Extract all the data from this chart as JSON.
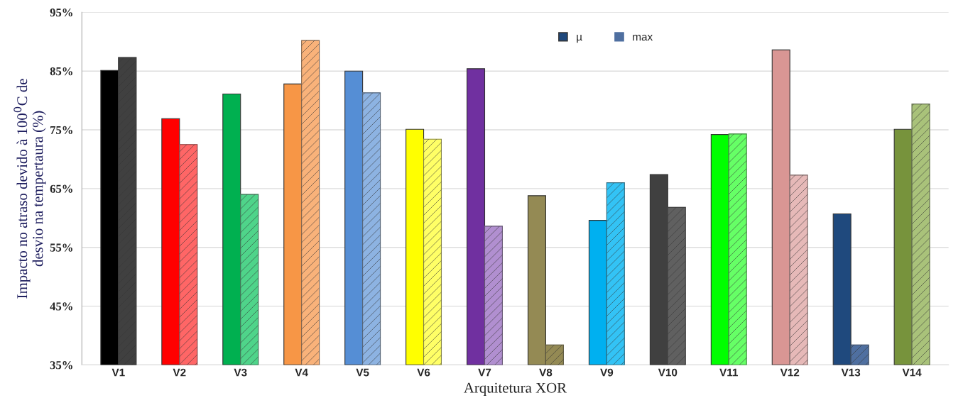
{
  "chart_data": {
    "type": "bar",
    "xlabel": "Arquitetura XOR",
    "ylabel": "Impacto no atraso devido à 100$^{0}$C de\ndesvio na tempertaura (%)",
    "categories": [
      "V1",
      "V2",
      "V3",
      "V4",
      "V5",
      "V6",
      "V7",
      "V8",
      "V9",
      "V10",
      "V11",
      "V12",
      "V13",
      "V14"
    ],
    "series": [
      {
        "name": "µ",
        "color": "#1f497d",
        "colors": [
          "#000000",
          "#ff0000",
          "#00b050",
          "#f79646",
          "#558ed5",
          "#ffff00",
          "#7030a0",
          "#948a54",
          "#00b0f0",
          "#404040",
          "#00ff00",
          "#d99694",
          "#1f497d",
          "#77933c"
        ],
        "values": [
          85.1,
          76.9,
          81.1,
          82.8,
          85.0,
          75.1,
          85.4,
          63.8,
          59.6,
          67.4,
          74.2,
          88.6,
          60.7,
          75.1
        ]
      },
      {
        "name": "max",
        "color": "#4f6fa0",
        "colors": [
          "#404040",
          "#ff6666",
          "#4fd48a",
          "#f9b27a",
          "#8db3e2",
          "#ffff66",
          "#b18fd0",
          "#948a54",
          "#33c3f5",
          "#606060",
          "#66ff66",
          "#e6b9b8",
          "#4f6fa0",
          "#a9c27a"
        ],
        "values": [
          87.3,
          72.5,
          64.0,
          90.2,
          81.3,
          73.4,
          58.6,
          38.4,
          66.0,
          61.8,
          74.3,
          67.3,
          38.4,
          79.4
        ]
      }
    ],
    "ylim": [
      35,
      95
    ],
    "yticks": [
      {
        "value": 35,
        "label": "35%"
      },
      {
        "value": 45,
        "label": "45%"
      },
      {
        "value": 55,
        "label": "55%"
      },
      {
        "value": 65,
        "label": "65%"
      },
      {
        "value": 75,
        "label": "75%"
      },
      {
        "value": 85,
        "label": "85%"
      },
      {
        "value": 95,
        "label": "95%"
      }
    ],
    "grid": "y",
    "legend": "top right"
  }
}
